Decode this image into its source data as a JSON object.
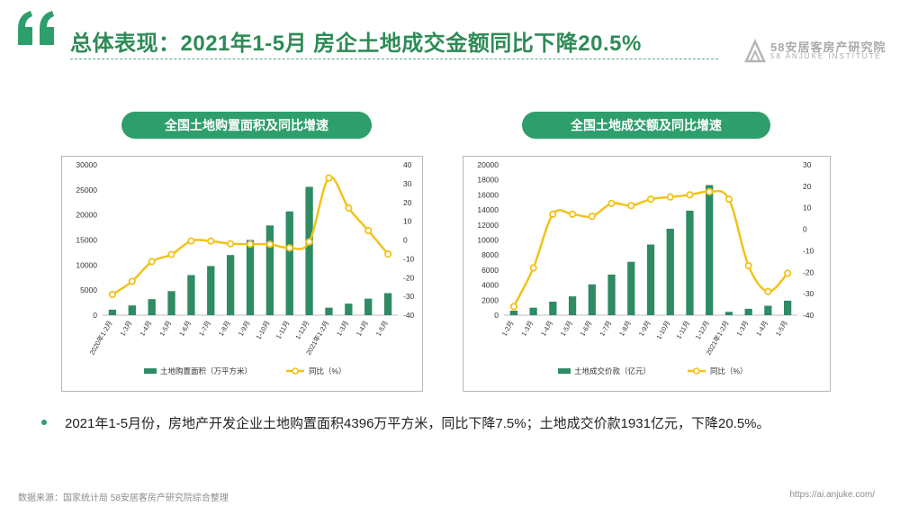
{
  "header": {
    "title": "总体表现：2021年1-5月 房企土地成交金额同比下降20.5%",
    "logo_line1": "58安居客房产研究院",
    "logo_line2": "58 ANJUKE INSTITUTE"
  },
  "colors": {
    "accent": "#2e9e6c",
    "bar": "#2e8b63",
    "line": "#f2c21b"
  },
  "icons": {
    "quote": "quote-mark-icon",
    "logo": "anjuke-logo-icon"
  },
  "chart_data": [
    {
      "type": "bar",
      "title": "全国土地购置面积及同比增速",
      "categories": [
        "2020年1-2月",
        "1-3月",
        "1-4月",
        "1-5月",
        "1-6月",
        "1-7月",
        "1-8月",
        "1-9月",
        "1-10月",
        "1-11月",
        "1-12月",
        "2021年1-2月",
        "1-3月",
        "1-4月",
        "1-5月"
      ],
      "y_ticks": [
        "30000",
        "25000",
        "20000",
        "15000",
        "10000",
        "5000",
        "0"
      ],
      "y2_ticks": [
        "40",
        "30",
        "20",
        "10",
        "0",
        "-10",
        "-20",
        "-30",
        "-40"
      ],
      "ylim": [
        0,
        30000
      ],
      "y2lim": [
        -40,
        40
      ],
      "series": [
        {
          "name": "土地购置面积（万平方米）",
          "type": "bar",
          "values": [
            1100,
            1950,
            3200,
            4800,
            8000,
            9800,
            12000,
            15000,
            17900,
            20700,
            25600,
            1500,
            2300,
            3300,
            4400
          ]
        },
        {
          "name": "同比（%）",
          "type": "line",
          "axis": "right",
          "values": [
            -29,
            -22,
            -11.5,
            -7.7,
            -0.5,
            -0.6,
            -2,
            -2.2,
            -2.3,
            -4.2,
            -1,
            33,
            17,
            5,
            -7.5
          ]
        }
      ],
      "legend": "bottom"
    },
    {
      "type": "bar",
      "title": "全国土地成交额及同比增速",
      "categories": [
        "1-2月",
        "1-3月",
        "1-4月",
        "1-5月",
        "1-6月",
        "1-7月",
        "1-8月",
        "1-9月",
        "1-10月",
        "1-11月",
        "1-12月",
        "2021年1-2月",
        "1-3月",
        "1-4月",
        "1-5月"
      ],
      "y_ticks": [
        "20000",
        "18000",
        "16000",
        "14000",
        "12000",
        "10000",
        "8000",
        "6000",
        "4000",
        "2000",
        "0"
      ],
      "y2_ticks": [
        "30",
        "20",
        "10",
        "0",
        "-10",
        "-20",
        "-30",
        "-40"
      ],
      "ylim": [
        0,
        20000
      ],
      "y2lim": [
        -40,
        30
      ],
      "series": [
        {
          "name": "土地成交价款（亿元）",
          "type": "bar",
          "values": [
            600,
            1000,
            1800,
            2500,
            4100,
            5400,
            7100,
            9400,
            11500,
            13900,
            17300,
            450,
            850,
            1250,
            1931
          ]
        },
        {
          "name": "同比（%）",
          "type": "line",
          "axis": "right",
          "values": [
            -36,
            -18,
            7,
            7,
            6,
            12,
            11,
            14,
            15,
            16,
            17.5,
            14,
            -17,
            -29,
            -20.5
          ]
        }
      ],
      "legend": "bottom"
    }
  ],
  "bullet": "2021年1-5月份，房地产开发企业土地购置面积4396万平方米，同比下降7.5%；土地成交价款1931亿元，下降20.5%。",
  "footer": {
    "source": "数据来源：国家统计局 58安居客房产研究院综合整理",
    "url": "https://ai.anjuke.com/"
  }
}
